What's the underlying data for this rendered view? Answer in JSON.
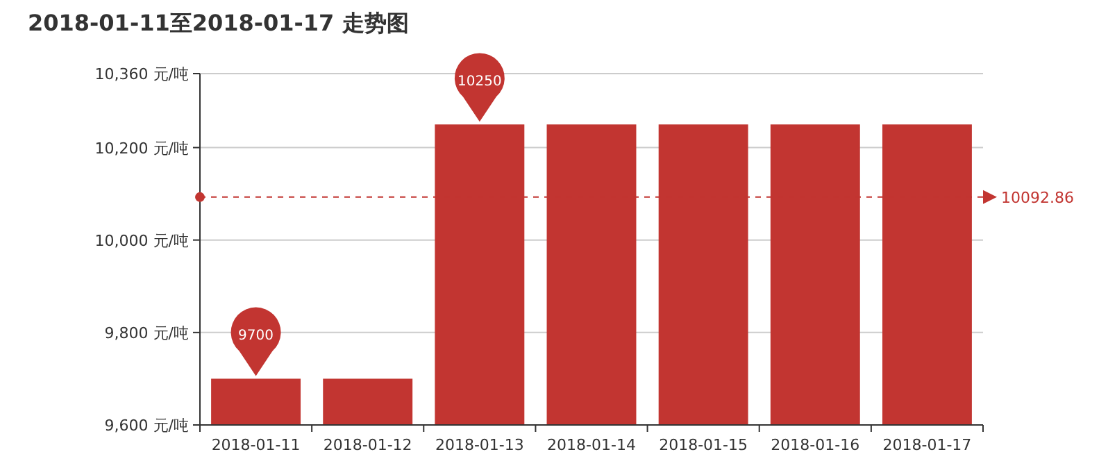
{
  "chart_data": {
    "type": "bar",
    "title": "2018-01-11至2018-01-17 走势图",
    "categories": [
      "2018-01-11",
      "2018-01-12",
      "2018-01-13",
      "2018-01-14",
      "2018-01-15",
      "2018-01-16",
      "2018-01-17"
    ],
    "values": [
      9700,
      9700,
      10250,
      10250,
      10250,
      10250,
      10250
    ],
    "color": "#c23531",
    "ylim": [
      9600,
      10360
    ],
    "yticks": [
      {
        "value": 9600,
        "label": "9,600 元/吨"
      },
      {
        "value": 9800,
        "label": "9,800 元/吨"
      },
      {
        "value": 10000,
        "label": "10,000 元/吨"
      },
      {
        "value": 10200,
        "label": "10,200 元/吨"
      },
      {
        "value": 10360,
        "label": "10,360 元/吨"
      }
    ],
    "grid": "y",
    "ref_lines": [
      {
        "axis": "y",
        "value": 10092.86,
        "label": "10092.86",
        "color": "#c23531",
        "line_style": "dashed"
      }
    ],
    "annotations": [
      {
        "text": "9700",
        "x": "2018-01-11",
        "y": 9700
      },
      {
        "text": "10250",
        "x": "2018-01-13",
        "y": 10250
      }
    ]
  }
}
